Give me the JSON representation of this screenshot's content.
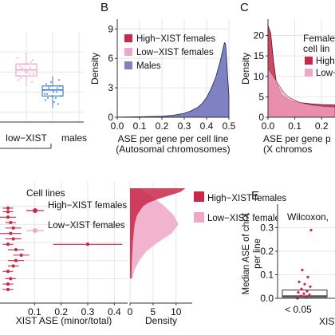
{
  "colors": {
    "high": "#c9284a",
    "low": "#f0a6c6",
    "male": "#3e7fc1",
    "auto": "#7f82c2",
    "grid": "#e6e6e6",
    "frame": "#dcdcdc"
  },
  "chart_data": [
    {
      "id": "A",
      "type": "box",
      "title": "",
      "categories": [
        "low−XIST",
        "males"
      ],
      "extra_tick_labels": [
        ""
      ],
      "series": [
        {
          "name": "low−XIST",
          "color": "#f0a6c6",
          "q1": 0.38,
          "median": 0.41,
          "q3": 0.44,
          "whisker_low": 0.33,
          "whisker_high": 0.48
        },
        {
          "name": "males",
          "color": "#3e7fc1",
          "q1": 0.28,
          "median": 0.31,
          "q3": 0.33,
          "whisker_low": 0.22,
          "whisker_high": 0.38
        }
      ],
      "ylim": [
        0.15,
        0.6
      ],
      "grid": true
    },
    {
      "id": "B",
      "type": "area",
      "panel_label": "B",
      "xlabel": "ASE per gene per cell line",
      "xlabel2": "(Autosomal chromosomes)",
      "ylabel": "Density",
      "xlim": [
        0,
        0.5
      ],
      "ylim": [
        0,
        10
      ],
      "xticks": [
        "0.0",
        "0.1",
        "0.2",
        "0.3",
        "0.4",
        "0.5"
      ],
      "yticks": [
        "0",
        "3",
        "6",
        "9"
      ],
      "legend": {
        "position": "top-left",
        "entries": [
          "High−XIST females",
          "Low−XIST females",
          "Males"
        ]
      },
      "series": [
        {
          "name": "Males",
          "color": "#7f82c2",
          "x": [
            0.0,
            0.1,
            0.2,
            0.25,
            0.3,
            0.33,
            0.36,
            0.38,
            0.4,
            0.42,
            0.44,
            0.45,
            0.46,
            0.47,
            0.48,
            0.485,
            0.49,
            0.495,
            0.5
          ],
          "y": [
            0.02,
            0.05,
            0.1,
            0.2,
            0.4,
            0.65,
            1.0,
            1.4,
            2.0,
            2.9,
            4.0,
            4.8,
            5.6,
            6.6,
            7.6,
            7.5,
            5.8,
            3.8,
            2.2
          ]
        }
      ],
      "grid": true
    },
    {
      "id": "C",
      "type": "area",
      "panel_label": "C",
      "xlabel": "ASE per gene p",
      "xlabel2": "(X chromos",
      "ylabel": "Density",
      "xticks": [
        "0.0",
        "0.1",
        "0.2"
      ],
      "yticks": [
        "0",
        "5",
        "10",
        "15",
        "20"
      ],
      "legend": {
        "title": "Female",
        "title2": "cell lin",
        "entries": [
          "High",
          "Low−"
        ]
      },
      "series": [
        {
          "name": "High−XIST females",
          "color": "#c9284a",
          "x": [
            0.0,
            0.01,
            0.02,
            0.03,
            0.05,
            0.08,
            0.12,
            0.16,
            0.2,
            0.25
          ],
          "y": [
            22.5,
            20.5,
            14,
            9,
            5.5,
            4.2,
            3.6,
            3.3,
            3.1,
            3.0
          ]
        },
        {
          "name": "Low−XIST females",
          "color": "#f0a6c6",
          "x": [
            0.0,
            0.02,
            0.04,
            0.06,
            0.08,
            0.12,
            0.16,
            0.2,
            0.25
          ],
          "y": [
            12,
            10,
            8,
            6,
            4.8,
            3.6,
            3.0,
            2.7,
            2.5
          ]
        }
      ],
      "grid": true
    },
    {
      "id": "D",
      "type": "scatter",
      "xlabel": "XIST ASE (minor/total)",
      "xticks": [
        "0.1",
        "0.2",
        "0.3",
        "0.4"
      ],
      "legend": {
        "title": "Cell lines",
        "entries": [
          "High−XIST females",
          "Low−XIST females"
        ]
      },
      "series": [
        {
          "name": "High−XIST females",
          "color": "#c9284a",
          "points": [
            {
              "x": 0.0,
              "y": 0.11,
              "xerr": 0.02
            },
            {
              "x": 0.0,
              "y": 0.13,
              "xerr": 0.02
            },
            {
              "x": 0.0,
              "y": 0.16,
              "xerr": 0.03
            },
            {
              "x": 0.01,
              "y": 0.19,
              "xerr": 0.02
            },
            {
              "x": 0.02,
              "y": 0.22,
              "xerr": 0.03
            },
            {
              "x": 0.01,
              "y": 0.25,
              "xerr": 0.04
            },
            {
              "x": 0.02,
              "y": 0.28,
              "xerr": 0.03
            },
            {
              "x": 0.0,
              "y": 0.31,
              "xerr": 0.02
            },
            {
              "x": 0.03,
              "y": 0.34,
              "xerr": 0.03
            },
            {
              "x": 0.05,
              "y": 0.37,
              "xerr": 0.03
            },
            {
              "x": 0.03,
              "y": 0.4,
              "xerr": 0.03
            },
            {
              "x": 0.02,
              "y": 0.43,
              "xerr": 0.02
            },
            {
              "x": 0.0,
              "y": 0.46,
              "xerr": 0.02
            },
            {
              "x": 0.01,
              "y": 0.5,
              "xerr": 0.02
            },
            {
              "x": 0.0,
              "y": 0.53,
              "xerr": 0.02
            },
            {
              "x": 0.0,
              "y": 0.56,
              "xerr": 0.02
            },
            {
              "x": 0.3,
              "y": 0.31,
              "xerr": 0.13
            }
          ]
        }
      ]
    },
    {
      "id": "D2",
      "type": "area",
      "xlabel": "Density",
      "xticks": [
        "0",
        "5",
        "10"
      ],
      "legend": {
        "entries": [
          "High−XIST females",
          "Low−XIST females"
        ]
      },
      "series": [
        {
          "name": "Low−XIST females",
          "color": "#f0a6c6",
          "y": [
            0.0,
            0.05,
            0.1,
            0.15,
            0.2,
            0.25,
            0.3,
            0.35,
            0.4,
            0.45,
            0.5
          ],
          "x": [
            2.0,
            5.0,
            7.5,
            9.5,
            10.5,
            9.0,
            6.0,
            3.5,
            2.0,
            1.0,
            0.5
          ]
        },
        {
          "name": "High−XIST females",
          "color": "#c9284a",
          "y": [
            0.0,
            0.02,
            0.04,
            0.06,
            0.08,
            0.1,
            0.15,
            0.2,
            0.3,
            0.4,
            0.5
          ],
          "x": [
            12.0,
            11.0,
            8.5,
            6.0,
            4.0,
            2.8,
            1.5,
            1.0,
            0.6,
            0.4,
            0.3
          ]
        }
      ]
    },
    {
      "id": "E",
      "type": "box",
      "panel_label": "E",
      "annotation": "Wilcoxon,",
      "ylabel": "Median ASE of chrX",
      "ylabel2": "per line",
      "categories": [
        "< 0.05"
      ],
      "xlabel": "XIST",
      "ylim": [
        0,
        0.4
      ],
      "yticks": [
        "0.0",
        "0.1",
        "0.2",
        "0.3"
      ],
      "series": [
        {
          "name": "< 0.05",
          "color": "#c9284a",
          "q1": 0.005,
          "median": 0.01,
          "q3": 0.035,
          "points": [
            0.0,
            0.005,
            0.01,
            0.015,
            0.02,
            0.025,
            0.03,
            0.04,
            0.05,
            0.06,
            0.07,
            0.09,
            0.12,
            0.29
          ]
        }
      ],
      "grid": true
    }
  ]
}
